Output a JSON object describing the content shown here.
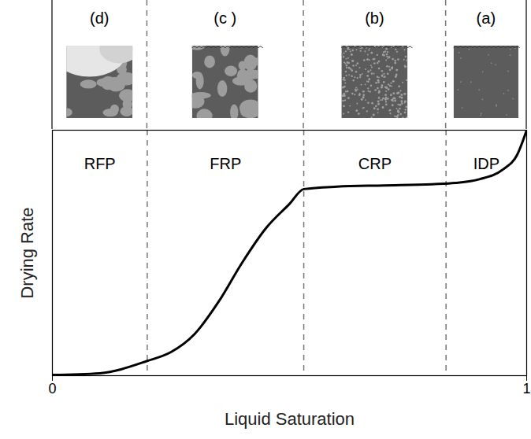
{
  "chart_data": {
    "type": "line",
    "x_label": "Liquid Saturation",
    "y_label": "Drying Rate",
    "x": [
      0,
      0.1,
      0.2,
      0.25,
      0.3,
      0.35,
      0.4,
      0.45,
      0.5,
      0.53,
      0.6,
      0.7,
      0.8,
      0.85,
      0.9,
      0.95,
      0.98,
      1
    ],
    "values": [
      0.003,
      0.01,
      0.06,
      0.096,
      0.17,
      0.3,
      0.46,
      0.6,
      0.7,
      0.76,
      0.77,
      0.775,
      0.78,
      0.785,
      0.8,
      0.84,
      0.9,
      1.0
    ],
    "color": "#000000",
    "xlim": [
      0,
      1
    ],
    "ylim": [
      0,
      1
    ],
    "xticks": [
      0,
      1
    ],
    "tick_labels": "x",
    "regions": [
      {
        "label": "RFP",
        "panel": "(d)",
        "from": 0,
        "to": 0.2
      },
      {
        "label": "FRP",
        "panel": "(c )",
        "from": 0.2,
        "to": 0.53
      },
      {
        "label": "CRP",
        "panel": "(b)",
        "from": 0.53,
        "to": 0.83
      },
      {
        "label": "IDP",
        "panel": "(a)",
        "from": 0.83,
        "to": 1
      }
    ]
  }
}
